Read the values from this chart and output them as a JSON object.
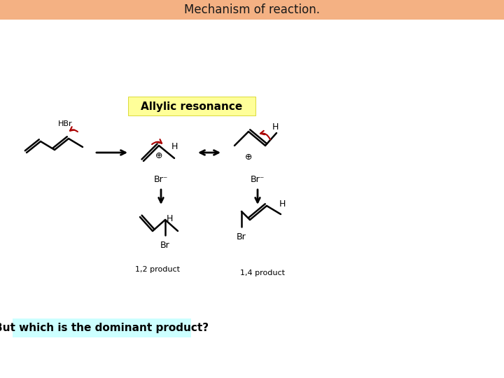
{
  "title": "Mechanism of reaction.",
  "title_bg": "#F4B183",
  "title_color": "#1a1a1a",
  "title_fontsize": 12,
  "allylic_label": "Allylic resonance",
  "allylic_bg": "#FFFF99",
  "bottom_label": "But which is the dominant product?",
  "bottom_bg": "#CCFFFF",
  "bg_color": "#FFFFFF",
  "label_12": "1,2 product",
  "label_14": "1,4 product",
  "hbr_label": "HBr"
}
